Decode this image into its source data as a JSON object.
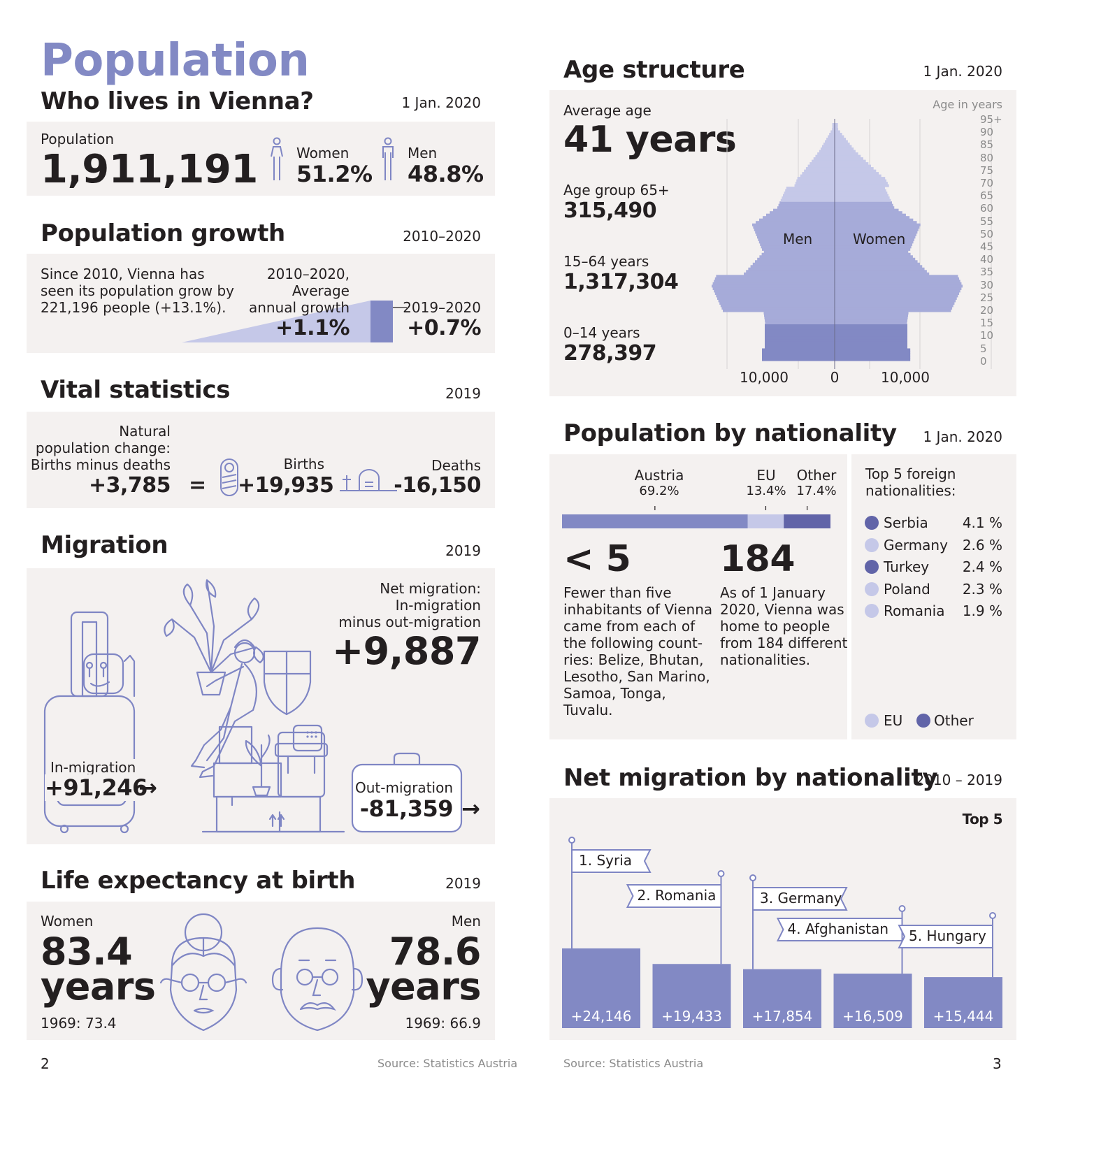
{
  "colors": {
    "accent": "#8289c4",
    "light": "#c5c8e8",
    "dark": "#6164a8",
    "panel": "#f4f1f0",
    "line": "#7f86c4"
  },
  "left": {
    "title": "Population",
    "subtitle": "Who lives in Vienna?",
    "date": "1 Jan. 2020",
    "population": {
      "label": "Population",
      "value": "1,911,191",
      "women_label": "Women",
      "women_value": "51.2%",
      "men_label": "Men",
      "men_value": "48.8%",
      "women_icon": "woman-icon",
      "men_icon": "man-icon"
    },
    "growth": {
      "heading": "Population growth",
      "date": "2010–2020",
      "text": [
        "Since 2010, Vienna has",
        "seen its population grow by",
        "221,196 people (+13.1%)."
      ],
      "avg_label": [
        "2010–2020,",
        "Average",
        "annual growth"
      ],
      "avg_value": "+1.1%",
      "recent_label": "2019–2020",
      "recent_value": "+0.7%"
    },
    "vital": {
      "heading": "Vital statistics",
      "date": "2019",
      "change_label": [
        "Natural",
        "population change:",
        "Births minus deaths"
      ],
      "change_value": "+3,785",
      "equals": "=",
      "births_label": "Births",
      "births_value": "+19,935",
      "deaths_label": "Deaths",
      "deaths_value": "-16,150",
      "baby_icon": "baby-icon",
      "grave_icon": "grave-icon"
    },
    "migration": {
      "heading": "Migration",
      "date": "2019",
      "net_label": [
        "Net migration:",
        "In-migration",
        "minus out-migration"
      ],
      "net_value": "+9,887",
      "in_label": "In-migration",
      "in_value": "+91,246",
      "out_label": "Out-migration",
      "out_value": "-81,359",
      "arrow": "→"
    },
    "life": {
      "heading": "Life expectancy at birth",
      "date": "2019",
      "women_label": "Women",
      "women_value": [
        "83.4",
        "years"
      ],
      "women_1969": "1969: 73.4",
      "men_label": "Men",
      "men_value": [
        "78.6",
        "years"
      ],
      "men_1969": "1969: 66.9"
    },
    "page": "2",
    "source": "Source: Statistics Austria"
  },
  "right": {
    "age": {
      "heading": "Age structure",
      "date": "1 Jan. 2020",
      "avg_label": "Average age",
      "avg_value": "41 years",
      "g65_label": "Age group 65+",
      "g65_value": "315,490",
      "g15_label": "15–64 years",
      "g15_value": "1,317,304",
      "g0_label": "0–14 years",
      "g0_value": "278,397",
      "unit": "Age in years",
      "men": "Men",
      "women": "Women"
    },
    "nationality": {
      "heading": "Population by nationality",
      "date": "1 Jan. 2020",
      "lt5": "< 5",
      "lt5_text": [
        "Fewer than five",
        "inhabitants of Vienna",
        "came from each of",
        "the following count-",
        "ries:  Belize, Bhutan,",
        "Lesotho, San Marino,",
        "Samoa, Tonga,",
        "Tuvalu."
      ],
      "n184": "184",
      "n184_text": [
        "As of 1 January",
        "2020, Vienna was",
        "home to people",
        "from 184 different",
        "nationalities."
      ],
      "top5_label": [
        "Top 5 foreign",
        "nationalities:"
      ],
      "top5": [
        {
          "name": "Serbia",
          "value": "4.1 %",
          "group": "Other"
        },
        {
          "name": "Germany",
          "value": "2.6 %",
          "group": "EU"
        },
        {
          "name": "Turkey",
          "value": "2.4 %",
          "group": "Other"
        },
        {
          "name": "Poland",
          "value": "2.3 %",
          "group": "EU"
        },
        {
          "name": "Romania",
          "value": "1.9 %",
          "group": "EU"
        }
      ],
      "legend_eu": "EU",
      "legend_other": "Other"
    },
    "netmig": {
      "heading": "Net migration by nationality",
      "date": "2010 – 2019",
      "top": "Top 5"
    },
    "page": "3",
    "source": "Source: Statistics Austria"
  },
  "chart_data": [
    {
      "type": "bar",
      "orientation": "horizontal-stacked",
      "categories": [
        "Austria",
        "EU",
        "Other"
      ],
      "values": [
        69.2,
        13.4,
        17.4
      ],
      "value_labels": [
        "69.2%",
        "13.4%",
        "17.4%"
      ]
    },
    {
      "type": "bar",
      "categories": [
        "1. Syria",
        "2. Romania",
        "3. Germany",
        "4. Afghanistan",
        "5. Hungary"
      ],
      "values": [
        24146,
        19433,
        17854,
        16509,
        15444
      ],
      "value_labels": [
        "+24,146",
        "+19,433",
        "+17,854",
        "+16,509",
        "+15,444"
      ]
    },
    {
      "type": "bar",
      "orientation": "population-pyramid",
      "xlabel": "",
      "ylabel": "Age in years",
      "x_ticks": [
        "10,000",
        "0",
        "10,000"
      ],
      "y_ticks": [
        "95+",
        "90",
        "85",
        "80",
        "75",
        "70",
        "65",
        "60",
        "55",
        "50",
        "45",
        "40",
        "35",
        "30",
        "25",
        "20",
        "15",
        "10",
        "5",
        "0"
      ],
      "series": [
        {
          "name": "Men"
        },
        {
          "name": "Women"
        }
      ],
      "age_groups": [
        "0–14",
        "15–64",
        "65+"
      ],
      "grid": true
    }
  ]
}
